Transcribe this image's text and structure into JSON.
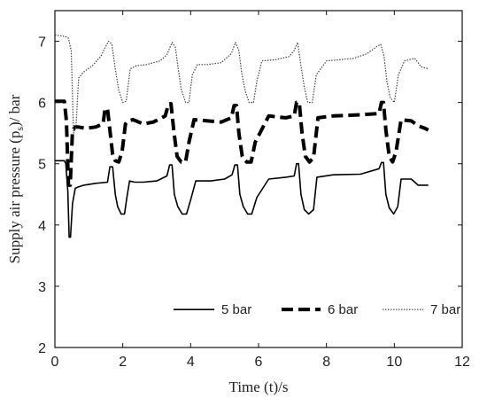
{
  "chart_data": {
    "type": "line",
    "xlabel": "Time (t)/s",
    "ylabel": "Supply air pressure (p",
    "ylabel_sub": "s",
    "ylabel_suffix": ")/ bar",
    "xlim": [
      0,
      12
    ],
    "ylim": [
      2,
      7.5
    ],
    "xticks": [
      0,
      2,
      4,
      6,
      8,
      10,
      12
    ],
    "yticks": [
      2,
      3,
      4,
      5,
      6,
      7
    ],
    "grid": false,
    "legend_position": "bottom-right",
    "series": [
      {
        "name": "5 bar",
        "style": "solid",
        "color": "#000000",
        "x": [
          0,
          0.28,
          0.32,
          0.38,
          0.42,
          0.46,
          0.52,
          0.6,
          0.68,
          0.85,
          1.2,
          1.55,
          1.62,
          1.7,
          1.78,
          1.85,
          1.95,
          2.05,
          2.12,
          2.2,
          2.35,
          2.6,
          3.0,
          3.3,
          3.38,
          3.45,
          3.52,
          3.62,
          3.75,
          3.88,
          4.02,
          4.15,
          4.6,
          5.0,
          5.22,
          5.3,
          5.38,
          5.45,
          5.55,
          5.68,
          5.8,
          5.95,
          6.3,
          6.8,
          7.05,
          7.12,
          7.18,
          7.25,
          7.35,
          7.48,
          7.62,
          7.72,
          8.2,
          9.0,
          9.55,
          9.62,
          9.68,
          9.75,
          9.85,
          9.98,
          10.1,
          10.2,
          10.5,
          10.7,
          10.8,
          11.0
        ],
        "y": [
          5.05,
          5.05,
          5.0,
          4.55,
          3.8,
          3.8,
          4.35,
          4.6,
          4.62,
          4.65,
          4.68,
          4.7,
          4.95,
          4.95,
          4.5,
          4.3,
          4.18,
          4.18,
          4.45,
          4.72,
          4.7,
          4.7,
          4.72,
          4.8,
          4.98,
          4.98,
          4.5,
          4.3,
          4.18,
          4.18,
          4.45,
          4.72,
          4.72,
          4.75,
          4.82,
          4.98,
          4.98,
          4.5,
          4.3,
          4.18,
          4.18,
          4.45,
          4.75,
          4.78,
          4.8,
          5.0,
          5.0,
          4.5,
          4.25,
          4.18,
          4.25,
          4.78,
          4.82,
          4.83,
          4.92,
          5.02,
          5.02,
          4.5,
          4.28,
          4.18,
          4.3,
          4.75,
          4.75,
          4.65,
          4.65,
          4.65
        ]
      },
      {
        "name": "6 bar",
        "style": "dashed",
        "color": "#000000",
        "x": [
          0,
          0.28,
          0.34,
          0.4,
          0.45,
          0.52,
          0.6,
          0.7,
          0.9,
          1.2,
          1.42,
          1.48,
          1.55,
          1.62,
          1.7,
          1.78,
          1.88,
          1.98,
          2.08,
          2.15,
          2.3,
          2.6,
          2.9,
          3.25,
          3.35,
          3.42,
          3.5,
          3.6,
          3.72,
          3.85,
          3.95,
          4.1,
          4.5,
          4.9,
          5.2,
          5.28,
          5.35,
          5.42,
          5.52,
          5.65,
          5.78,
          5.9,
          6.3,
          6.8,
          7.05,
          7.12,
          7.2,
          7.28,
          7.38,
          7.5,
          7.62,
          7.75,
          8.2,
          9.0,
          9.55,
          9.62,
          9.68,
          9.75,
          9.85,
          9.95,
          10.05,
          10.2,
          10.5,
          10.7,
          10.9,
          11.0
        ],
        "y": [
          6.02,
          6.02,
          5.7,
          4.65,
          4.65,
          5.55,
          5.6,
          5.6,
          5.58,
          5.6,
          5.65,
          5.9,
          5.9,
          5.55,
          5.15,
          5.05,
          5.03,
          5.2,
          5.65,
          5.7,
          5.72,
          5.65,
          5.68,
          5.78,
          5.98,
          5.98,
          5.55,
          5.12,
          5.03,
          5.03,
          5.35,
          5.72,
          5.7,
          5.68,
          5.75,
          5.95,
          5.95,
          5.5,
          5.12,
          5.03,
          5.03,
          5.35,
          5.78,
          5.75,
          5.78,
          6.0,
          6.0,
          5.5,
          5.12,
          5.03,
          5.1,
          5.75,
          5.78,
          5.8,
          5.82,
          6.0,
          6.0,
          5.55,
          5.12,
          5.03,
          5.2,
          5.72,
          5.7,
          5.62,
          5.58,
          5.55
        ]
      },
      {
        "name": "7 bar",
        "style": "dotted",
        "color": "#444444",
        "x": [
          0,
          0.3,
          0.4,
          0.48,
          0.55,
          0.62,
          0.7,
          0.85,
          1.1,
          1.35,
          1.48,
          1.58,
          1.68,
          1.78,
          1.88,
          2.0,
          2.1,
          2.22,
          2.4,
          2.7,
          3.1,
          3.3,
          3.45,
          3.55,
          3.62,
          3.72,
          3.85,
          3.95,
          4.05,
          4.2,
          4.5,
          4.9,
          5.2,
          5.32,
          5.42,
          5.5,
          5.6,
          5.72,
          5.85,
          5.95,
          6.1,
          6.5,
          6.9,
          7.05,
          7.15,
          7.25,
          7.35,
          7.45,
          7.58,
          7.7,
          8.0,
          8.8,
          9.2,
          9.5,
          9.6,
          9.7,
          9.78,
          9.88,
          10.0,
          10.12,
          10.3,
          10.6,
          10.8,
          11.0
        ],
        "y": [
          7.1,
          7.08,
          7.05,
          6.85,
          5.5,
          5.6,
          6.4,
          6.5,
          6.6,
          6.75,
          6.9,
          7.0,
          6.95,
          6.55,
          6.2,
          6.0,
          6.02,
          6.55,
          6.6,
          6.62,
          6.68,
          6.78,
          6.98,
          6.9,
          6.6,
          6.22,
          6.0,
          6.0,
          6.45,
          6.62,
          6.62,
          6.65,
          6.8,
          6.98,
          6.85,
          6.5,
          6.2,
          6.0,
          6.0,
          6.35,
          6.68,
          6.7,
          6.75,
          6.85,
          6.98,
          6.6,
          6.25,
          6.0,
          6.0,
          6.45,
          6.68,
          6.72,
          6.8,
          6.92,
          6.95,
          6.75,
          6.35,
          6.08,
          6.0,
          6.45,
          6.68,
          6.72,
          6.58,
          6.55
        ]
      }
    ]
  }
}
